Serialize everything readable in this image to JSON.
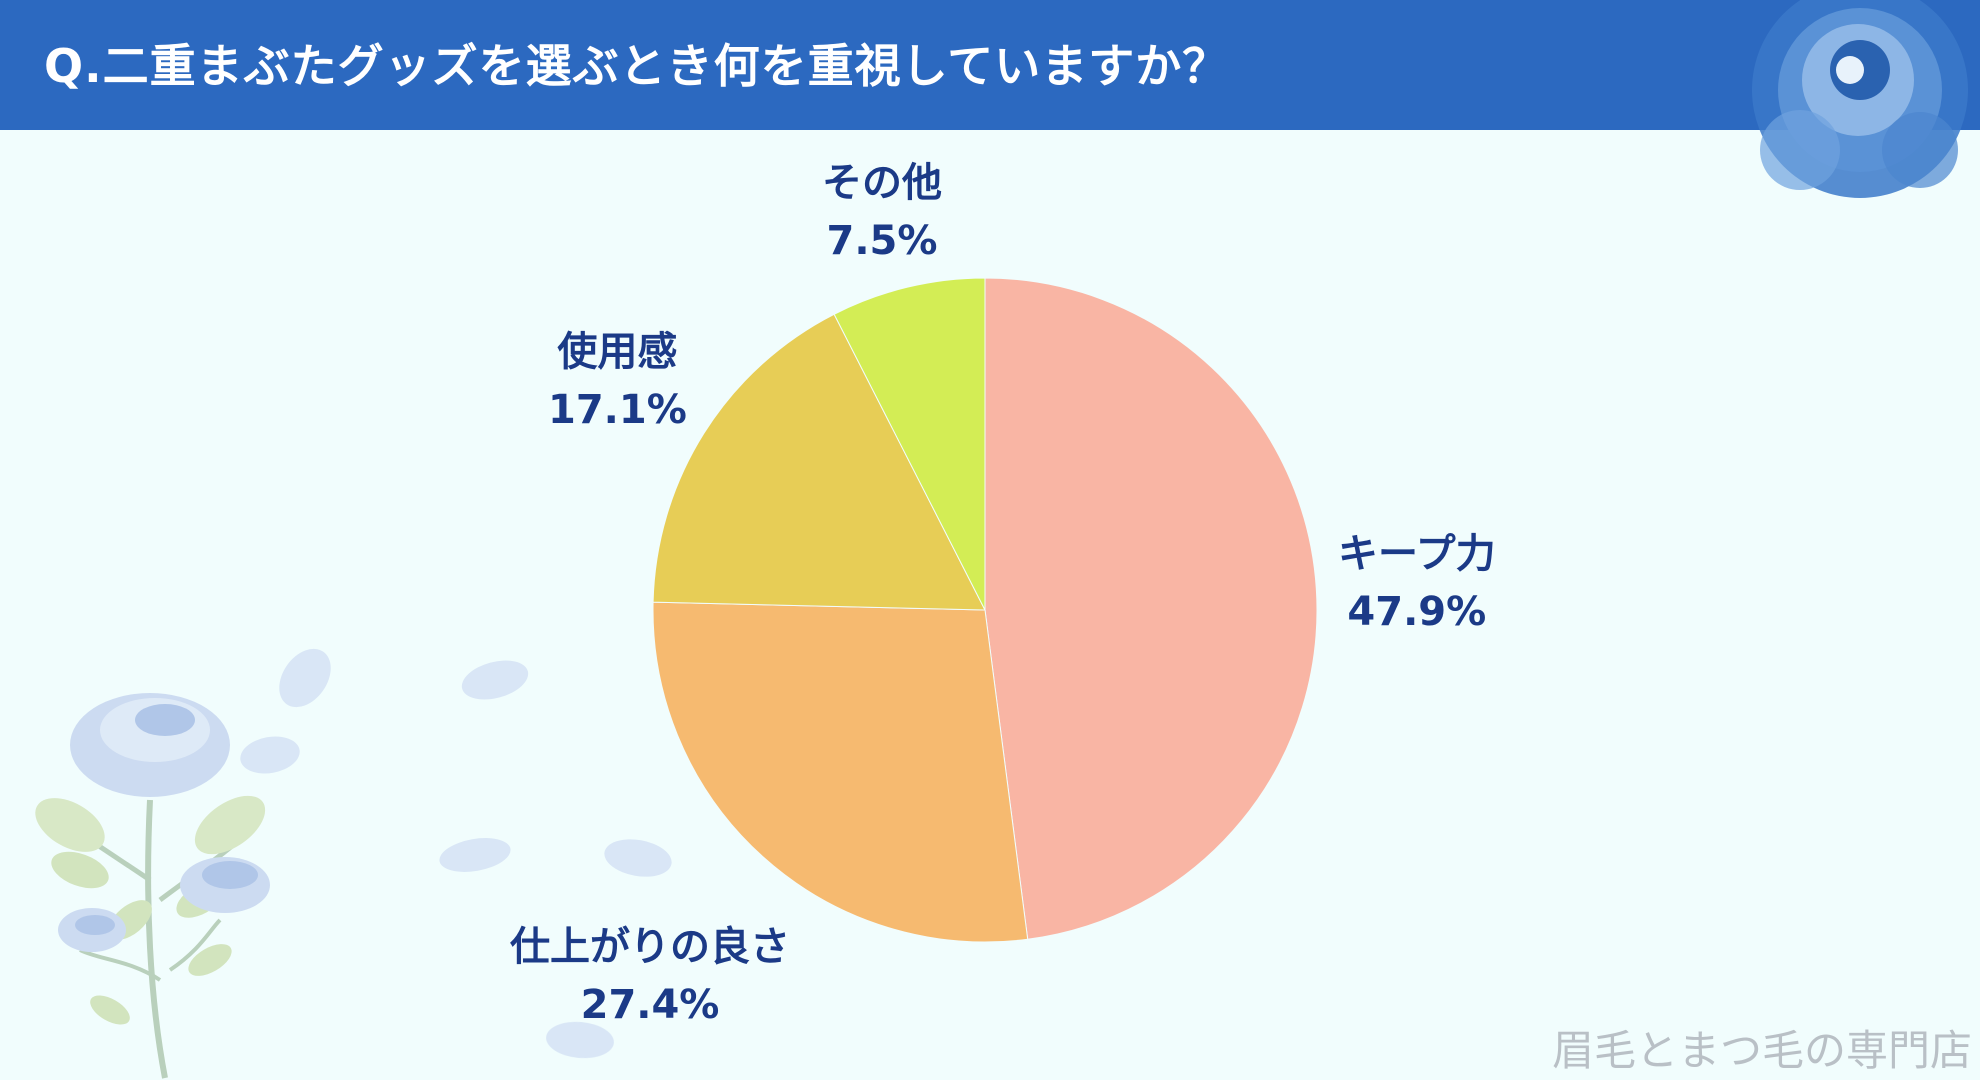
{
  "header": {
    "title": "Q.二重まぶたグッズを選ぶとき何を重視していますか？"
  },
  "chart_data": {
    "type": "pie",
    "title": "Q.二重まぶたグッズを選ぶとき何を重視していますか？",
    "slices": [
      {
        "label": "キープ力",
        "value": 47.9,
        "display": "47.9%",
        "color": "#f9b5a4"
      },
      {
        "label": "仕上がりの良さ",
        "value": 27.4,
        "display": "27.4%",
        "color": "#f6ba70"
      },
      {
        "label": "使用感",
        "value": 17.1,
        "display": "17.1%",
        "color": "#e7cd56"
      },
      {
        "label": "その他",
        "value": 7.5,
        "display": "7.5%",
        "color": "#d3ed55"
      }
    ]
  },
  "watermark": "眉毛とまつ毛の専門店"
}
